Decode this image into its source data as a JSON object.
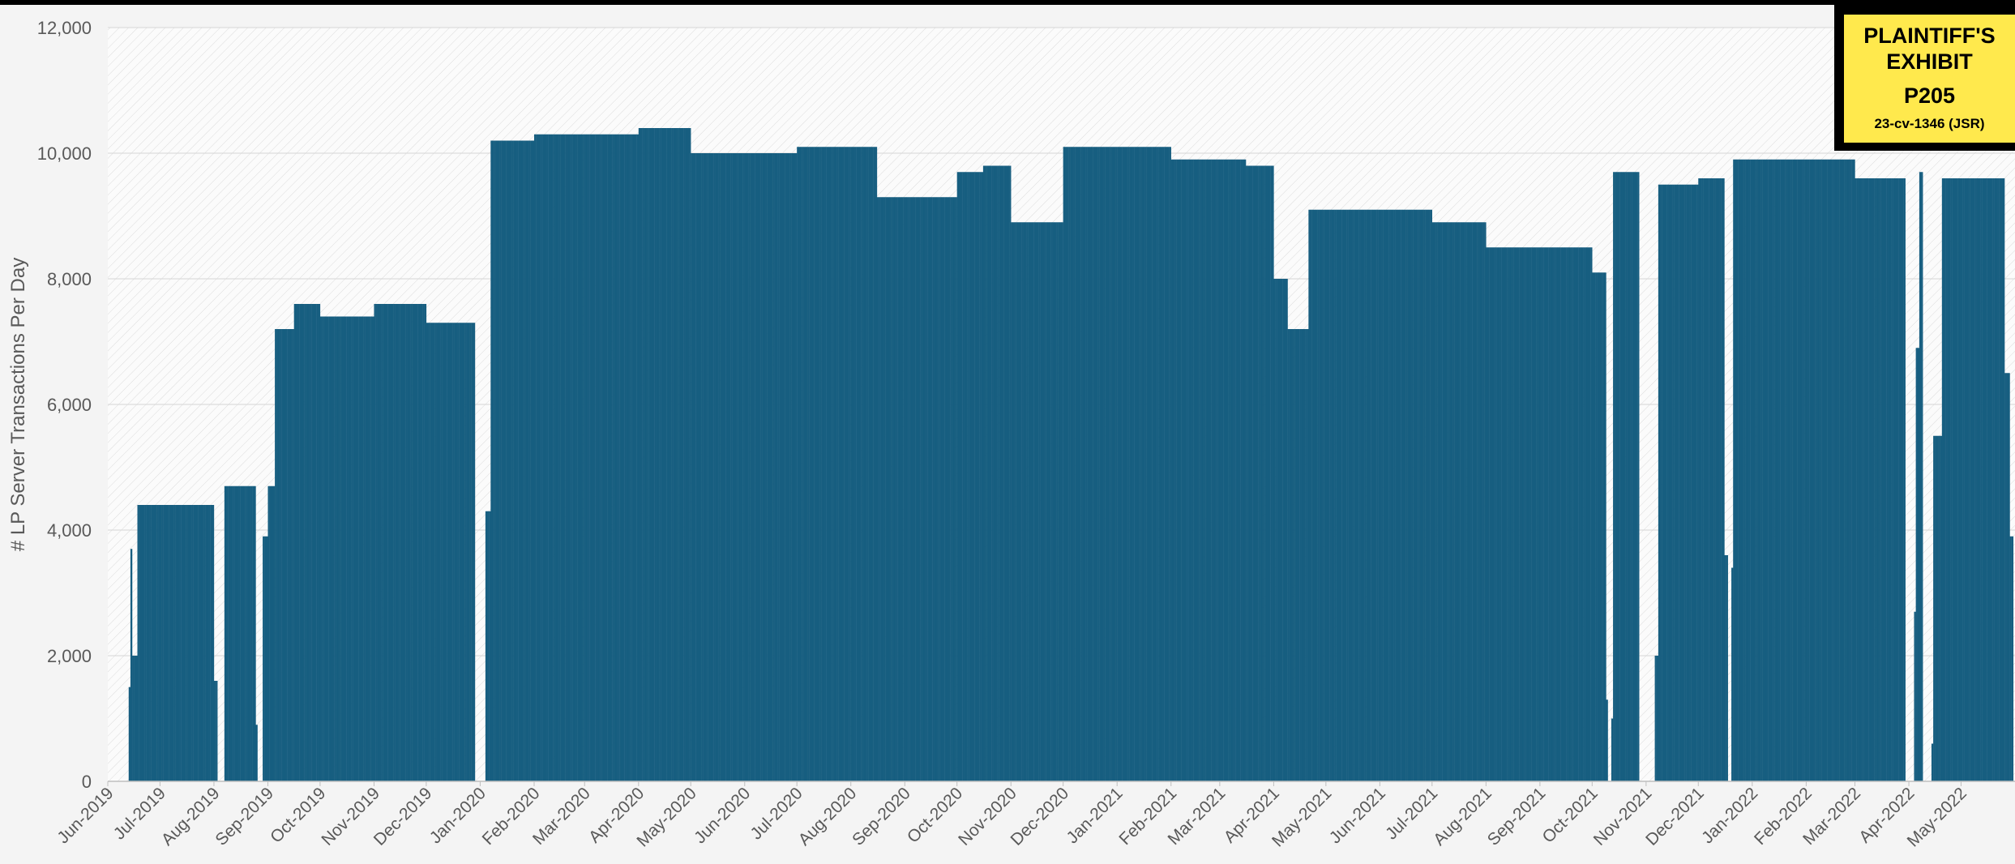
{
  "exhibit_sticker": {
    "line1": "PLAINTIFF'S",
    "line2": "EXHIBIT",
    "exhibit_number": "P205",
    "case_number": "23-cv-1346 (JSR)"
  },
  "chart_data": {
    "type": "bar",
    "ylabel": "# LP Server Transactions Per Day",
    "xlabel": "",
    "ylim": [
      0,
      12000
    ],
    "yticks": [
      0,
      2000,
      4000,
      6000,
      8000,
      10000,
      12000
    ],
    "ytick_labels": [
      "0",
      "2,000",
      "4,000",
      "6,000",
      "8,000",
      "10,000",
      "12,000"
    ],
    "xlim": [
      "2019-06-01",
      "2022-06-01"
    ],
    "xtick_labels": [
      "Jun-2019",
      "Jul-2019",
      "Aug-2019",
      "Sep-2019",
      "Oct-2019",
      "Nov-2019",
      "Dec-2019",
      "Jan-2020",
      "Feb-2020",
      "Mar-2020",
      "Apr-2020",
      "May-2020",
      "Jun-2020",
      "Jul-2020",
      "Aug-2020",
      "Sep-2020",
      "Oct-2020",
      "Nov-2020",
      "Dec-2020",
      "Jan-2021",
      "Feb-2021",
      "Mar-2021",
      "Apr-2021",
      "May-2021",
      "Jun-2021",
      "Jul-2021",
      "Aug-2021",
      "Sep-2021",
      "Oct-2021",
      "Nov-2021",
      "Dec-2021",
      "Jan-2022",
      "Feb-2022",
      "Mar-2022",
      "Apr-2022",
      "May-2022"
    ],
    "xtick_dates": [
      "2019-06-01",
      "2019-07-01",
      "2019-08-01",
      "2019-09-01",
      "2019-10-01",
      "2019-11-01",
      "2019-12-01",
      "2020-01-01",
      "2020-02-01",
      "2020-03-01",
      "2020-04-01",
      "2020-05-01",
      "2020-06-01",
      "2020-07-01",
      "2020-08-01",
      "2020-09-01",
      "2020-10-01",
      "2020-11-01",
      "2020-12-01",
      "2021-01-01",
      "2021-02-01",
      "2021-03-01",
      "2021-04-01",
      "2021-05-01",
      "2021-06-01",
      "2021-07-01",
      "2021-08-01",
      "2021-09-01",
      "2021-10-01",
      "2021-11-01",
      "2021-12-01",
      "2022-01-01",
      "2022-02-01",
      "2022-03-01",
      "2022-04-01",
      "2022-05-01"
    ],
    "bar_color": "#175e80",
    "grid": true,
    "legend": "none",
    "series": [
      {
        "values_by_period": [
          {
            "start": "2019-06-13",
            "end": "2019-06-13",
            "level": 1500
          },
          {
            "start": "2019-06-14",
            "end": "2019-06-14",
            "level": 3700
          },
          {
            "start": "2019-06-15",
            "end": "2019-06-17",
            "level": 2000
          },
          {
            "start": "2019-06-18",
            "end": "2019-07-31",
            "level": 4400
          },
          {
            "start": "2019-08-01",
            "end": "2019-08-02",
            "level": 1600
          },
          {
            "start": "2019-08-03",
            "end": "2019-08-06",
            "level": 0
          },
          {
            "start": "2019-08-07",
            "end": "2019-08-24",
            "level": 4700
          },
          {
            "start": "2019-08-25",
            "end": "2019-08-25",
            "level": 900
          },
          {
            "start": "2019-08-26",
            "end": "2019-08-28",
            "level": 0
          },
          {
            "start": "2019-08-29",
            "end": "2019-08-31",
            "level": 3900
          },
          {
            "start": "2019-09-01",
            "end": "2019-09-04",
            "level": 4700
          },
          {
            "start": "2019-09-05",
            "end": "2019-09-15",
            "level": 7200
          },
          {
            "start": "2019-09-16",
            "end": "2019-09-30",
            "level": 7600
          },
          {
            "start": "2019-10-01",
            "end": "2019-10-31",
            "level": 7400
          },
          {
            "start": "2019-11-01",
            "end": "2019-11-30",
            "level": 7600
          },
          {
            "start": "2019-12-01",
            "end": "2019-12-28",
            "level": 7300
          },
          {
            "start": "2019-12-29",
            "end": "2020-01-03",
            "level": 0
          },
          {
            "start": "2020-01-04",
            "end": "2020-01-06",
            "level": 4300
          },
          {
            "start": "2020-01-07",
            "end": "2020-01-31",
            "level": 10200
          },
          {
            "start": "2020-02-01",
            "end": "2020-03-31",
            "level": 10300
          },
          {
            "start": "2020-04-01",
            "end": "2020-04-30",
            "level": 10400
          },
          {
            "start": "2020-05-01",
            "end": "2020-06-30",
            "level": 10000
          },
          {
            "start": "2020-07-01",
            "end": "2020-08-15",
            "level": 10100
          },
          {
            "start": "2020-08-16",
            "end": "2020-09-30",
            "level": 9300
          },
          {
            "start": "2020-10-01",
            "end": "2020-10-15",
            "level": 9700
          },
          {
            "start": "2020-10-16",
            "end": "2020-10-31",
            "level": 9800
          },
          {
            "start": "2020-11-01",
            "end": "2020-11-30",
            "level": 8900
          },
          {
            "start": "2020-12-01",
            "end": "2021-01-31",
            "level": 10100
          },
          {
            "start": "2021-02-01",
            "end": "2021-03-15",
            "level": 9900
          },
          {
            "start": "2021-03-16",
            "end": "2021-03-31",
            "level": 9800
          },
          {
            "start": "2021-04-01",
            "end": "2021-04-08",
            "level": 8000
          },
          {
            "start": "2021-04-09",
            "end": "2021-04-20",
            "level": 7200
          },
          {
            "start": "2021-04-21",
            "end": "2021-06-30",
            "level": 9100
          },
          {
            "start": "2021-07-01",
            "end": "2021-07-31",
            "level": 8900
          },
          {
            "start": "2021-08-01",
            "end": "2021-09-30",
            "level": 8500
          },
          {
            "start": "2021-10-01",
            "end": "2021-10-08",
            "level": 8100
          },
          {
            "start": "2021-10-09",
            "end": "2021-10-09",
            "level": 1300
          },
          {
            "start": "2021-10-10",
            "end": "2021-10-11",
            "level": 0
          },
          {
            "start": "2021-10-12",
            "end": "2021-10-12",
            "level": 1000
          },
          {
            "start": "2021-10-13",
            "end": "2021-10-27",
            "level": 9700
          },
          {
            "start": "2021-10-28",
            "end": "2021-11-05",
            "level": 0
          },
          {
            "start": "2021-11-06",
            "end": "2021-11-07",
            "level": 2000
          },
          {
            "start": "2021-11-08",
            "end": "2021-11-30",
            "level": 9500
          },
          {
            "start": "2021-12-01",
            "end": "2021-12-15",
            "level": 9600
          },
          {
            "start": "2021-12-16",
            "end": "2021-12-17",
            "level": 3600
          },
          {
            "start": "2021-12-18",
            "end": "2021-12-19",
            "level": 0
          },
          {
            "start": "2021-12-20",
            "end": "2021-12-20",
            "level": 3400
          },
          {
            "start": "2021-12-21",
            "end": "2022-02-28",
            "level": 9900
          },
          {
            "start": "2022-03-01",
            "end": "2022-03-29",
            "level": 9600
          },
          {
            "start": "2022-03-30",
            "end": "2022-04-03",
            "level": 0
          },
          {
            "start": "2022-04-04",
            "end": "2022-04-04",
            "level": 2700
          },
          {
            "start": "2022-04-05",
            "end": "2022-04-06",
            "level": 6900
          },
          {
            "start": "2022-04-07",
            "end": "2022-04-08",
            "level": 9700
          },
          {
            "start": "2022-04-09",
            "end": "2022-04-13",
            "level": 0
          },
          {
            "start": "2022-04-14",
            "end": "2022-04-14",
            "level": 600
          },
          {
            "start": "2022-04-15",
            "end": "2022-04-19",
            "level": 5500
          },
          {
            "start": "2022-04-20",
            "end": "2022-05-25",
            "level": 9600
          },
          {
            "start": "2022-05-26",
            "end": "2022-05-28",
            "level": 6500
          },
          {
            "start": "2022-05-29",
            "end": "2022-05-30",
            "level": 3900
          }
        ]
      }
    ]
  }
}
